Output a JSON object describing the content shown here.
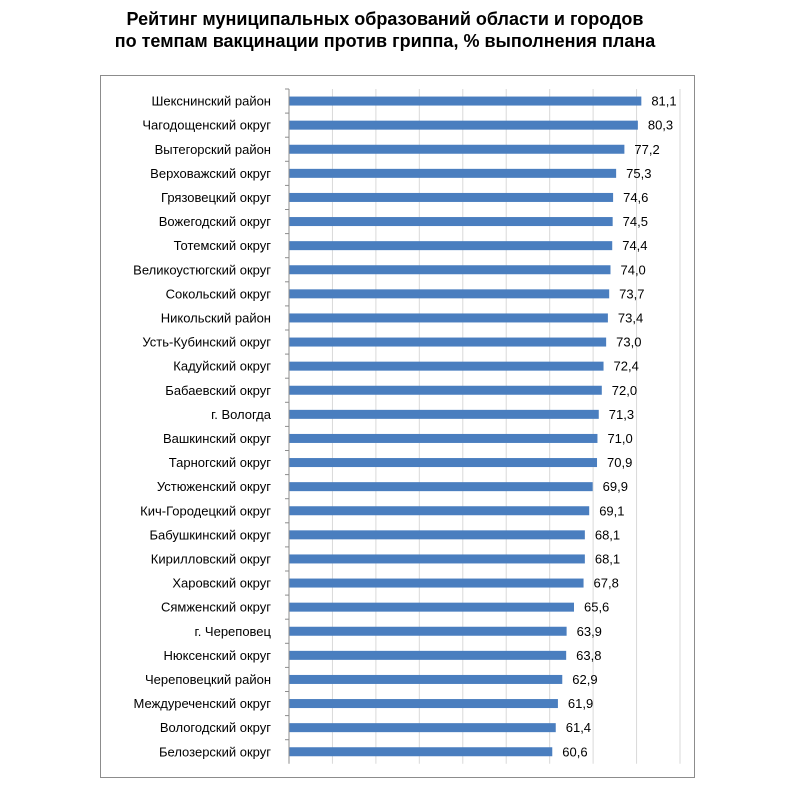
{
  "title_line1": "Рейтинг муниципальных образований области и городов",
  "title_line2": "по темпам вакцинации против гриппа, % выполнения плана",
  "colors": {
    "bar": "#4a7ebf",
    "axis": "#8c8c8c",
    "grid": "#d9d9d9"
  },
  "chart_data": {
    "type": "bar",
    "orientation": "horizontal",
    "title": "Рейтинг муниципальных образований области и городов по темпам вакцинации против гриппа, % выполнения плана",
    "xlabel": "",
    "ylabel": "",
    "xlim": [
      0,
      90
    ],
    "grid": true,
    "categories": [
      "Шекснинский  район",
      "Чагодощенский округ",
      "Вытегорский район",
      "Верховажский округ",
      "Грязовецкий округ",
      "Вожегодский округ",
      "Тотемский округ",
      "Великоустюгский округ",
      "Сокольский округ",
      "Никольский район",
      "Усть-Кубинский округ",
      "Кадуйский округ",
      "Бабаевский округ",
      "г. Вологда",
      "Вашкинский округ",
      "Тарногский округ",
      "Устюженский округ",
      "Кич-Городецкий округ",
      "Бабушкинский округ",
      "Кирилловский округ",
      "Харовский округ",
      "Сямженский округ",
      "г. Череповец",
      "Нюксенский округ",
      "Череповецкий  район",
      "Междуреченский  округ",
      "Вологодский округ",
      "Белозерский округ"
    ],
    "values": [
      81.1,
      80.3,
      77.2,
      75.3,
      74.6,
      74.5,
      74.4,
      74.0,
      73.7,
      73.4,
      73.0,
      72.4,
      72.0,
      71.3,
      71.0,
      70.9,
      69.9,
      69.1,
      68.1,
      68.1,
      67.8,
      65.6,
      63.9,
      63.8,
      62.9,
      61.9,
      61.4,
      60.6
    ],
    "value_labels": [
      "81,1",
      "80,3",
      "77,2",
      "75,3",
      "74,6",
      "74,5",
      "74,4",
      "74,0",
      "73,7",
      "73,4",
      "73,0",
      "72,4",
      "72,0",
      "71,3",
      "71,0",
      "70,9",
      "69,9",
      "69,1",
      "68,1",
      "68,1",
      "67,8",
      "65,6",
      "63,9",
      "63,8",
      "62,9",
      "61,9",
      "61,4",
      "60,6"
    ]
  }
}
